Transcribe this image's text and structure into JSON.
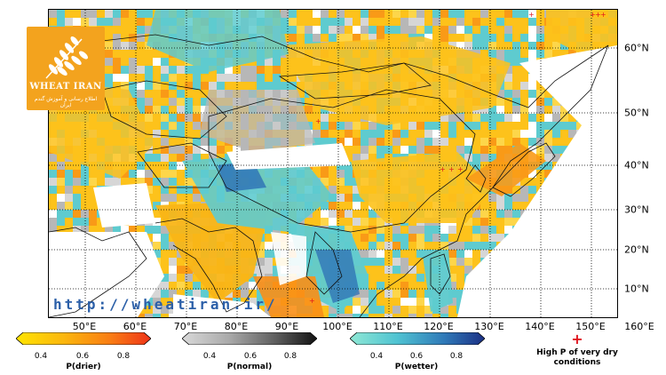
{
  "map": {
    "lon_labels": [
      "50°E",
      "60°E",
      "70°E",
      "80°E",
      "90°E",
      "100°E",
      "110°E",
      "120°E",
      "130°E",
      "140°E",
      "150°E",
      "160°E"
    ],
    "lat_labels": [
      "60°N",
      "50°N",
      "40°N",
      "30°N",
      "20°N",
      "10°N"
    ]
  },
  "logo": {
    "title": "WHEAT IRAN",
    "subtitle": "اطلاع رسانی و آموزش گندم ایران"
  },
  "watermark": {
    "url": "http://wheatiran.ir/"
  },
  "legend": {
    "drier": {
      "title": "P(drier)",
      "ticks": [
        "0.4",
        "0.6",
        "0.8"
      ],
      "colors": [
        "#ffe400",
        "#fbb70d",
        "#f97c13",
        "#ee3318"
      ]
    },
    "normal": {
      "title": "P(normal)",
      "ticks": [
        "0.4",
        "0.6",
        "0.8"
      ],
      "colors": [
        "#d9d9d9",
        "#a9a9a9",
        "#5c5c5c",
        "#111111"
      ]
    },
    "wetter": {
      "title": "P(wetter)",
      "ticks": [
        "0.4",
        "0.6",
        "0.8"
      ],
      "colors": [
        "#8fe8d4",
        "#4fc3d2",
        "#2f79b8",
        "#1b2f84"
      ]
    },
    "very_dry": {
      "symbol": "+",
      "label": "High P of very dry conditions"
    }
  },
  "colors": {
    "dry_light": "#fdc21b",
    "dry_orange": "#f99a17",
    "normal_grey": "#b7b7b7",
    "wet_cyan": "#5ecbcf",
    "wet_blue": "#2d6fb4",
    "very_dry_marker": "#e0141e"
  }
}
